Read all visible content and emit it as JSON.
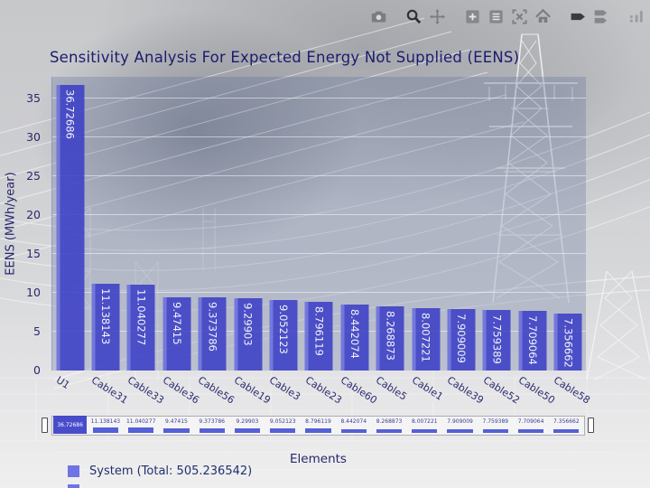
{
  "modebar": {
    "icons": [
      "camera",
      "zoom",
      "pan",
      "zoom-in",
      "zoom-out",
      "autoscale",
      "reset-home",
      "hover-closest",
      "hover-compare",
      "plotly-logo"
    ]
  },
  "background": {
    "description": "faded photo of power transmission towers and lines"
  },
  "chart_data": {
    "type": "bar",
    "title": "Sensitivity Analysis For Expected Energy Not Supplied (EENS)",
    "xlabel": "Elements",
    "ylabel": "EENS (MWh/year)",
    "ylim": [
      0,
      37.8
    ],
    "yticks": [
      0,
      5,
      10,
      15,
      20,
      25,
      30,
      35
    ],
    "grid": true,
    "categories": [
      "U1",
      "Cable31",
      "Cable33",
      "Cable36",
      "Cable56",
      "Cable19",
      "Cable3",
      "Cable23",
      "Cable60",
      "Cable5",
      "Cable1",
      "Cable39",
      "Cable52",
      "Cable50",
      "Cable58"
    ],
    "values": [
      36.72686,
      11.138143,
      11.040277,
      9.47415,
      9.373786,
      9.29903,
      9.052123,
      8.796119,
      8.442074,
      8.268873,
      8.007221,
      7.909009,
      7.759389,
      7.709064,
      7.356662
    ],
    "series_name": "System",
    "series_total": "505.236542",
    "legend_label": "System (Total: 505.236542)",
    "legend_position": "bottom-left",
    "bar_color": "#3b3ec5",
    "legend_swatch_color": "#6e73e6",
    "rangeslider": true
  }
}
